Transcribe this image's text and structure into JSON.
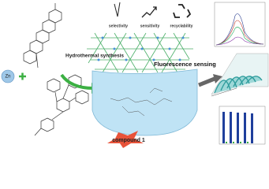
{
  "metal": "Zn",
  "features": [
    {
      "label": "selectivity"
    },
    {
      "label": "sensitivity"
    },
    {
      "label": "recyclability"
    }
  ],
  "steps": {
    "synthesis": "Hydrothermal synthesis",
    "sensing": "Fluorescence sensing"
  },
  "product": "compound 1"
}
